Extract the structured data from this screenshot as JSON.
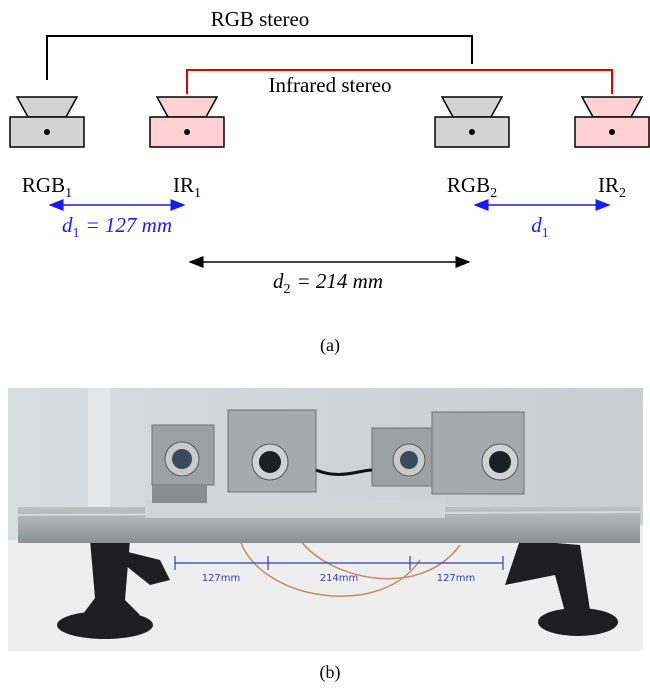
{
  "figure": {
    "a": {
      "groups": [
        {
          "label": "RGB stereo"
        },
        {
          "label": "Infrared stereo"
        }
      ],
      "cameras": [
        {
          "name": "RGB",
          "sub": "1"
        },
        {
          "name": "IR",
          "sub": "1"
        },
        {
          "name": "RGB",
          "sub": "2"
        },
        {
          "name": "IR",
          "sub": "2"
        }
      ],
      "distances": [
        {
          "symbol": "d",
          "sub": "1",
          "rest": "= 127 mm"
        },
        {
          "symbol": "d",
          "sub": "1"
        },
        {
          "symbol": "d",
          "sub": "2",
          "rest": "= 214 mm"
        }
      ],
      "caption": "(a)"
    },
    "b": {
      "measurements": [
        "127mm",
        "214mm",
        "127mm"
      ],
      "caption": "(b)"
    }
  }
}
